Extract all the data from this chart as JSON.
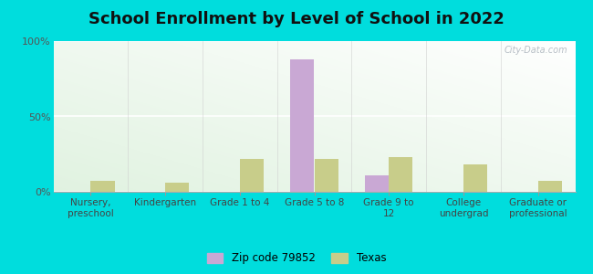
{
  "title": "School Enrollment by Level of School in 2022",
  "categories": [
    "Nursery,\npreschool",
    "Kindergarten",
    "Grade 1 to 4",
    "Grade 5 to 8",
    "Grade 9 to\n12",
    "College\nundergrad",
    "Graduate or\nprofessional"
  ],
  "zip_values": [
    0,
    0,
    0,
    88,
    11,
    0,
    0
  ],
  "texas_values": [
    7,
    6,
    22,
    22,
    23,
    18,
    7
  ],
  "zip_color": "#c9a8d4",
  "texas_color": "#c8cd8a",
  "background_outer": "#00dddd",
  "background_inner": "#e8f5e0",
  "title_fontsize": 13,
  "ylim": [
    0,
    100
  ],
  "yticks": [
    0,
    50,
    100
  ],
  "ytick_labels": [
    "0%",
    "50%",
    "100%"
  ],
  "watermark": "City-Data.com",
  "legend_zip_label": "Zip code 79852",
  "legend_texas_label": "Texas",
  "bar_width": 0.32
}
